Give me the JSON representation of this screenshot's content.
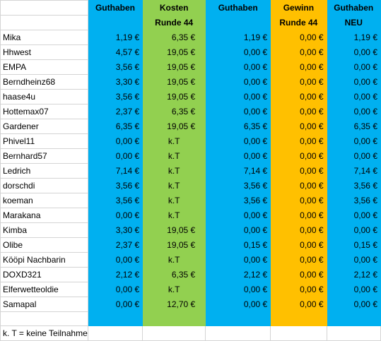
{
  "colors": {
    "blue": "#00b0f0",
    "green": "#92d050",
    "orange": "#ffc000",
    "grid": "#d4d4d4"
  },
  "header": {
    "col1_line1": "Guthaben",
    "col2_line1": "Kosten",
    "col2_line2": "Runde 44",
    "col3_line1": "Guthaben",
    "col4_line1": "Gewinn",
    "col4_line2": "Runde 44",
    "col5_line1": "Guthaben",
    "col5_line2": "NEU"
  },
  "rows": [
    {
      "name": "Mika",
      "guthaben": "1,19 €",
      "kosten": "6,35 €",
      "guthaben2": "1,19 €",
      "gewinn": "0,00 €",
      "neu": "1,19 €"
    },
    {
      "name": "Hhwest",
      "guthaben": "4,57 €",
      "kosten": "19,05 €",
      "guthaben2": "0,00 €",
      "gewinn": "0,00 €",
      "neu": "0,00 €"
    },
    {
      "name": "EMPA",
      "guthaben": "3,56 €",
      "kosten": "19,05 €",
      "guthaben2": "0,00 €",
      "gewinn": "0,00 €",
      "neu": "0,00 €"
    },
    {
      "name": "Berndheinz68",
      "guthaben": "3,30 €",
      "kosten": "19,05 €",
      "guthaben2": "0,00 €",
      "gewinn": "0,00 €",
      "neu": "0,00 €"
    },
    {
      "name": "haase4u",
      "guthaben": "3,56 €",
      "kosten": "19,05 €",
      "guthaben2": "0,00 €",
      "gewinn": "0,00 €",
      "neu": "0,00 €"
    },
    {
      "name": "Hottemax07",
      "guthaben": "2,37 €",
      "kosten": "6,35 €",
      "guthaben2": "0,00 €",
      "gewinn": "0,00 €",
      "neu": "0,00 €"
    },
    {
      "name": "Gardener",
      "guthaben": "6,35 €",
      "kosten": "19,05 €",
      "guthaben2": "6,35 €",
      "gewinn": "0,00 €",
      "neu": "6,35 €"
    },
    {
      "name": "Phivel11",
      "guthaben": "0,00 €",
      "kosten": "k.T",
      "guthaben2": "0,00 €",
      "gewinn": "0,00 €",
      "neu": "0,00 €"
    },
    {
      "name": "Bernhard57",
      "guthaben": "0,00 €",
      "kosten": "k.T",
      "guthaben2": "0,00 €",
      "gewinn": "0,00 €",
      "neu": "0,00 €"
    },
    {
      "name": "Ledrich",
      "guthaben": "7,14 €",
      "kosten": "k.T",
      "guthaben2": "7,14 €",
      "gewinn": "0,00 €",
      "neu": "7,14 €"
    },
    {
      "name": "dorschdi",
      "guthaben": "3,56 €",
      "kosten": "k.T",
      "guthaben2": "3,56 €",
      "gewinn": "0,00 €",
      "neu": "3,56 €"
    },
    {
      "name": "koeman",
      "guthaben": "3,56 €",
      "kosten": "k.T",
      "guthaben2": "3,56 €",
      "gewinn": "0,00 €",
      "neu": "3,56 €"
    },
    {
      "name": "Marakana",
      "guthaben": "0,00 €",
      "kosten": "k.T",
      "guthaben2": "0,00 €",
      "gewinn": "0,00 €",
      "neu": "0,00 €"
    },
    {
      "name": "Kimba",
      "guthaben": "3,30 €",
      "kosten": "19,05 €",
      "guthaben2": "0,00 €",
      "gewinn": "0,00 €",
      "neu": "0,00 €"
    },
    {
      "name": "Olibe",
      "guthaben": "2,37 €",
      "kosten": "19,05 €",
      "guthaben2": "0,15 €",
      "gewinn": "0,00 €",
      "neu": "0,15 €"
    },
    {
      "name": "Kööpi Nachbarin",
      "guthaben": "0,00 €",
      "kosten": "k.T",
      "guthaben2": "0,00 €",
      "gewinn": "0,00 €",
      "neu": "0,00 €"
    },
    {
      "name": "DOXD321",
      "guthaben": "2,12 €",
      "kosten": "6,35 €",
      "guthaben2": "2,12 €",
      "gewinn": "0,00 €",
      "neu": "2,12 €"
    },
    {
      "name": "Elferwetteoldie",
      "guthaben": "0,00 €",
      "kosten": "k.T",
      "guthaben2": "0,00 €",
      "gewinn": "0,00 €",
      "neu": "0,00 €"
    },
    {
      "name": "Samapal",
      "guthaben": "0,00 €",
      "kosten": "12,70 €",
      "guthaben2": "0,00 €",
      "gewinn": "0,00 €",
      "neu": "0,00 €"
    }
  ],
  "footnote": "k. T = keine Teilnahme"
}
